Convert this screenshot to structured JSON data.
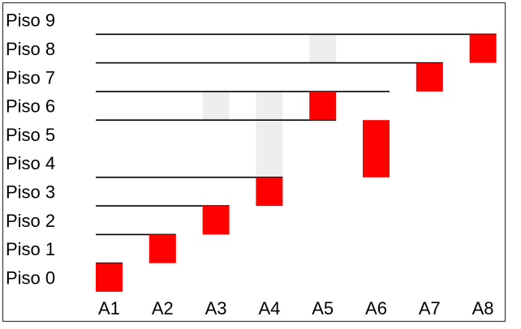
{
  "colors": {
    "occupied": "#ff0000",
    "ghost": "#eeeeee",
    "line": "#000000",
    "border": "#222222"
  },
  "diagram": {
    "floors": [
      "Piso 0",
      "Piso 1",
      "Piso 2",
      "Piso 3",
      "Piso 4",
      "Piso 5",
      "Piso 6",
      "Piso 7",
      "Piso 8",
      "Piso 9"
    ],
    "columns": [
      "A1",
      "A2",
      "A3",
      "A4",
      "A5",
      "A6",
      "A7",
      "A8"
    ],
    "occupied_cells": [
      {
        "column": "A1",
        "floor_from": 0,
        "floor_to": 0
      },
      {
        "column": "A2",
        "floor_from": 1,
        "floor_to": 1
      },
      {
        "column": "A3",
        "floor_from": 2,
        "floor_to": 2
      },
      {
        "column": "A4",
        "floor_from": 3,
        "floor_to": 3
      },
      {
        "column": "A5",
        "floor_from": 6,
        "floor_to": 6
      },
      {
        "column": "A6",
        "floor_from": 4,
        "floor_to": 5
      },
      {
        "column": "A7",
        "floor_from": 7,
        "floor_to": 7
      },
      {
        "column": "A8",
        "floor_from": 8,
        "floor_to": 8
      }
    ],
    "ghost_cells": [
      {
        "column": "A3",
        "floor_from": 6,
        "floor_to": 6
      },
      {
        "column": "A4",
        "floor_from": 4,
        "floor_to": 6
      },
      {
        "column": "A5",
        "floor_from": 8,
        "floor_to": 8
      }
    ],
    "boundaries": [
      {
        "level": 1,
        "to_column": "A1"
      },
      {
        "level": 2,
        "to_column": "A2"
      },
      {
        "level": 3,
        "to_column": "A3"
      },
      {
        "level": 4,
        "to_column": "A4"
      },
      {
        "level": 6,
        "to_column": "A5"
      },
      {
        "level": 7,
        "to_column": "A6"
      },
      {
        "level": 8,
        "to_column": "A7"
      },
      {
        "level": 9,
        "to_column": "A8"
      }
    ]
  }
}
